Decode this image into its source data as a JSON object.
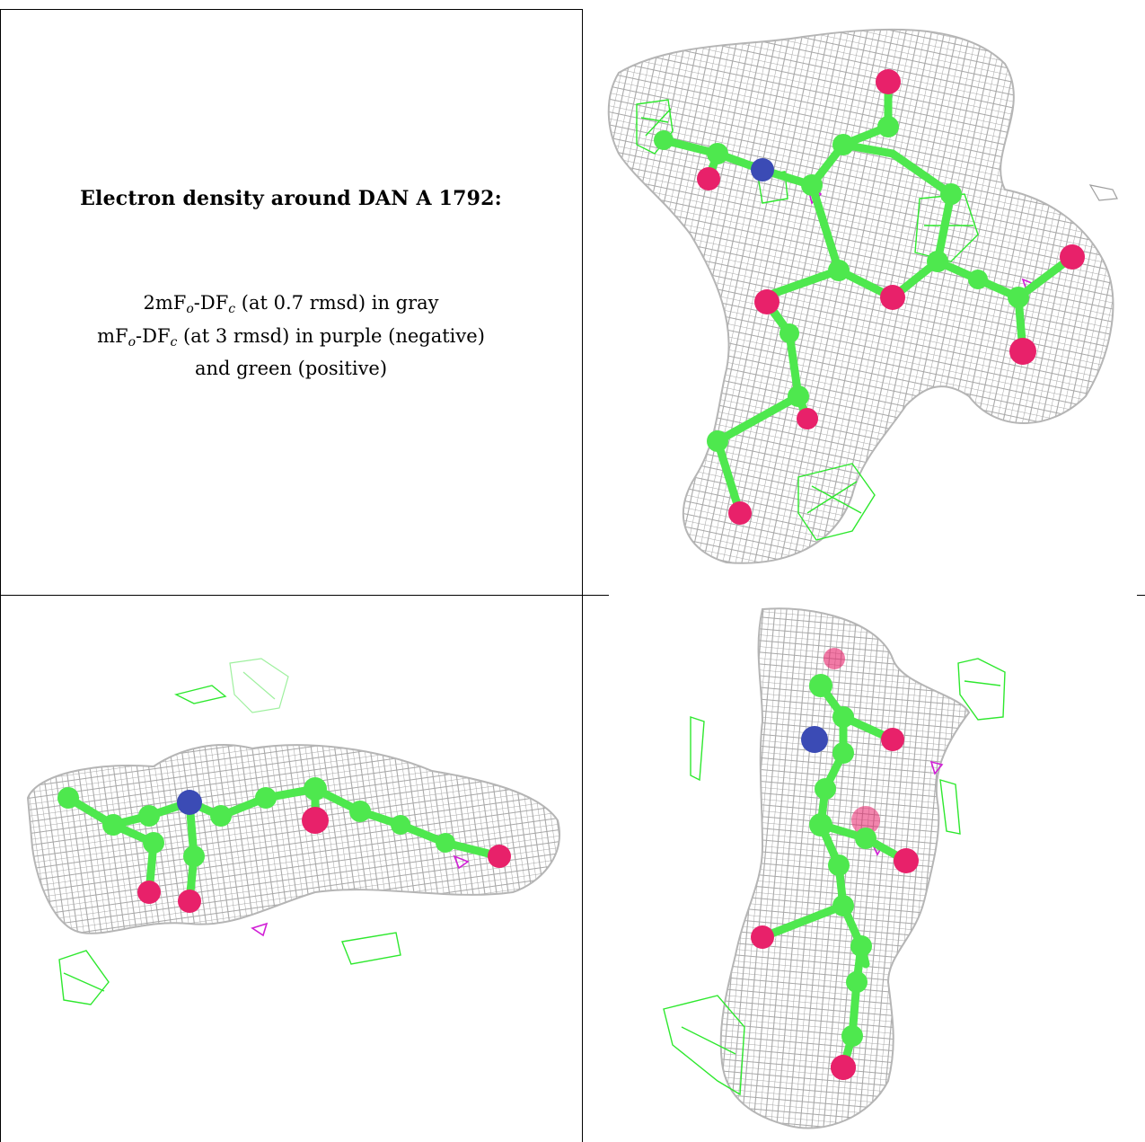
{
  "caption": {
    "title": "Electron density around DAN A 1792:",
    "line1_prefix": "2mF",
    "line1_sub1": "o",
    "line1_mid": "-DF",
    "line1_sub2": "c",
    "line1_suffix": " (at 0.7 rmsd) in gray",
    "line2_prefix": "mF",
    "line2_sub1": "o",
    "line2_mid": "-DF",
    "line2_sub2": "c",
    "line2_suffix": " (at 3 rmsd) in purple (negative)",
    "line3": "and green (positive)"
  },
  "colors": {
    "density_2fofc": "#9e9e9e",
    "difference_negative": "#d11fd6",
    "difference_positive": "#2ee82e",
    "carbon": "#4ee84e",
    "oxygen": "#e8216a",
    "nitrogen": "#3b4bb5"
  }
}
